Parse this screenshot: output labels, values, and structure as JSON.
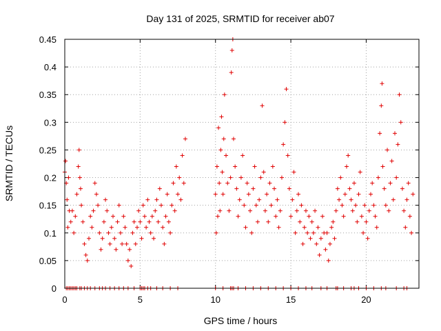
{
  "chart_data": {
    "type": "scatter",
    "title": "Day 131 of 2025, SRMTID for receiver ab07",
    "xlabel": "GPS time / hours",
    "ylabel": "SRMTID / TECUs",
    "xlim": [
      0,
      23.5
    ],
    "ylim": [
      0,
      0.45
    ],
    "xticks": [
      0,
      5,
      10,
      15,
      20
    ],
    "xtick_labels": [
      "0",
      "5",
      "10",
      "15",
      "20"
    ],
    "yticks": [
      0,
      0.05,
      0.1,
      0.15,
      0.2,
      0.25,
      0.3,
      0.35,
      0.4,
      0.45
    ],
    "ytick_labels": [
      "0",
      "0.05",
      "0.1",
      "0.15",
      "0.2",
      "0.25",
      "0.3",
      "0.35",
      "0.4",
      "0.45"
    ],
    "grid": true,
    "marker": "+",
    "color": "#e00000",
    "series": [
      {
        "name": "SRMTID",
        "x": [
          0.0,
          0.05,
          0.1,
          0.15,
          0.2,
          0.25,
          0.3,
          0.4,
          0.5,
          0.6,
          0.7,
          0.8,
          0.9,
          0.95,
          1.0,
          1.05,
          1.1,
          1.2,
          1.3,
          1.4,
          1.5,
          1.6,
          1.7,
          1.8,
          1.9,
          2.0,
          2.1,
          2.2,
          2.3,
          2.4,
          2.5,
          2.6,
          2.7,
          2.8,
          2.9,
          3.0,
          3.1,
          3.2,
          3.3,
          3.4,
          3.5,
          3.6,
          3.7,
          3.8,
          3.9,
          4.0,
          4.1,
          4.2,
          4.3,
          4.4,
          4.5,
          4.6,
          4.7,
          4.8,
          4.9,
          5.0,
          5.1,
          5.2,
          5.3,
          5.4,
          5.5,
          5.6,
          5.7,
          5.8,
          5.9,
          6.0,
          6.1,
          6.2,
          6.3,
          6.4,
          6.5,
          6.6,
          6.7,
          6.8,
          6.9,
          7.0,
          7.1,
          7.2,
          7.3,
          7.4,
          7.5,
          7.6,
          7.7,
          7.8,
          7.9,
          8.0,
          10.0,
          10.05,
          10.1,
          10.15,
          10.2,
          10.25,
          10.3,
          10.35,
          10.4,
          10.45,
          10.5,
          10.55,
          10.6,
          10.7,
          10.8,
          10.9,
          11.0,
          11.05,
          11.1,
          11.15,
          11.2,
          11.3,
          11.4,
          11.5,
          11.6,
          11.7,
          11.8,
          11.9,
          12.0,
          12.1,
          12.2,
          12.3,
          12.4,
          12.5,
          12.6,
          12.7,
          12.8,
          12.9,
          13.0,
          13.1,
          13.2,
          13.3,
          13.4,
          13.5,
          13.6,
          13.7,
          13.8,
          13.9,
          14.0,
          14.1,
          14.2,
          14.3,
          14.4,
          14.5,
          14.6,
          14.7,
          14.8,
          14.9,
          15.0,
          15.1,
          15.2,
          15.3,
          15.4,
          15.5,
          15.6,
          15.7,
          15.8,
          15.9,
          16.0,
          16.1,
          16.2,
          16.3,
          16.4,
          16.5,
          16.6,
          16.7,
          16.8,
          16.9,
          17.0,
          17.1,
          17.2,
          17.3,
          17.4,
          17.5,
          17.6,
          17.7,
          17.8,
          17.9,
          18.0,
          18.1,
          18.2,
          18.3,
          18.4,
          18.5,
          18.6,
          18.7,
          18.8,
          18.9,
          19.0,
          19.1,
          19.2,
          19.3,
          19.4,
          19.5,
          19.6,
          19.7,
          19.8,
          19.9,
          20.0,
          20.1,
          20.2,
          20.3,
          20.4,
          20.5,
          20.6,
          20.7,
          20.8,
          20.9,
          21.0,
          21.05,
          21.1,
          21.2,
          21.3,
          21.4,
          21.5,
          21.6,
          21.7,
          21.8,
          21.9,
          22.0,
          22.1,
          22.2,
          22.3,
          22.4,
          22.5,
          22.6,
          22.7,
          22.8,
          22.9,
          23.0,
          23.1
        ],
        "y": [
          0.21,
          0.23,
          0.19,
          0.16,
          0.11,
          0.2,
          0.14,
          0.12,
          0.14,
          0.1,
          0.13,
          0.17,
          0.22,
          0.25,
          0.2,
          0.18,
          0.15,
          0.12,
          0.08,
          0.06,
          0.05,
          0.09,
          0.13,
          0.11,
          0.14,
          0.19,
          0.17,
          0.15,
          0.1,
          0.07,
          0.09,
          0.12,
          0.16,
          0.14,
          0.1,
          0.08,
          0.11,
          0.13,
          0.09,
          0.07,
          0.12,
          0.15,
          0.1,
          0.08,
          0.13,
          0.11,
          0.08,
          0.05,
          0.07,
          0.04,
          0.1,
          0.12,
          0.08,
          0.11,
          0.14,
          0.12,
          0.09,
          0.15,
          0.13,
          0.11,
          0.16,
          0.12,
          0.1,
          0.13,
          0.09,
          0.14,
          0.16,
          0.12,
          0.18,
          0.15,
          0.11,
          0.08,
          0.13,
          0.17,
          0.12,
          0.1,
          0.15,
          0.19,
          0.14,
          0.22,
          0.17,
          0.2,
          0.16,
          0.24,
          0.19,
          0.27,
          0.17,
          0.1,
          0.22,
          0.13,
          0.29,
          0.19,
          0.14,
          0.25,
          0.31,
          0.21,
          0.17,
          0.27,
          0.35,
          0.24,
          0.19,
          0.14,
          0.2,
          0.39,
          0.43,
          0.45,
          0.27,
          0.22,
          0.18,
          0.13,
          0.16,
          0.2,
          0.24,
          0.15,
          0.11,
          0.19,
          0.17,
          0.14,
          0.1,
          0.18,
          0.22,
          0.15,
          0.12,
          0.16,
          0.2,
          0.33,
          0.21,
          0.14,
          0.17,
          0.12,
          0.19,
          0.15,
          0.22,
          0.18,
          0.13,
          0.16,
          0.11,
          0.14,
          0.2,
          0.26,
          0.3,
          0.36,
          0.24,
          0.18,
          0.13,
          0.16,
          0.21,
          0.1,
          0.14,
          0.17,
          0.12,
          0.15,
          0.08,
          0.11,
          0.14,
          0.1,
          0.13,
          0.09,
          0.12,
          0.1,
          0.14,
          0.08,
          0.11,
          0.06,
          0.09,
          0.13,
          0.1,
          0.07,
          0.1,
          0.05,
          0.08,
          0.11,
          0.12,
          0.09,
          0.14,
          0.18,
          0.16,
          0.2,
          0.15,
          0.13,
          0.17,
          0.22,
          0.24,
          0.18,
          0.16,
          0.14,
          0.19,
          0.15,
          0.12,
          0.17,
          0.21,
          0.13,
          0.1,
          0.15,
          0.12,
          0.09,
          0.14,
          0.17,
          0.19,
          0.15,
          0.13,
          0.11,
          0.2,
          0.28,
          0.33,
          0.37,
          0.22,
          0.18,
          0.15,
          0.25,
          0.14,
          0.19,
          0.23,
          0.16,
          0.28,
          0.2,
          0.26,
          0.35,
          0.3,
          0.18,
          0.14,
          0.11,
          0.16,
          0.19,
          0.13,
          0.1,
          0.17
        ]
      }
    ],
    "zero_markers_x": [
      0.1,
      0.2,
      0.3,
      0.4,
      0.5,
      0.6,
      0.7,
      0.8,
      1.0,
      1.1,
      1.3,
      1.5,
      1.7,
      2.0,
      2.3,
      2.5,
      2.7,
      3.0,
      3.3,
      3.6,
      3.9,
      4.2,
      4.6,
      5.0,
      5.1,
      5.2,
      5.3,
      5.5,
      5.7,
      6.1,
      6.5,
      7.0,
      7.5,
      10.0,
      10.5,
      11.0,
      11.1,
      11.2,
      11.5,
      12.0,
      12.5,
      13.0,
      13.5,
      14.0,
      14.5,
      15.0,
      15.5,
      16.0,
      16.4,
      17.0,
      17.4,
      18.0,
      18.1,
      18.5,
      19.0,
      19.2,
      19.5,
      20.0,
      20.5,
      21.0,
      21.3,
      22.0,
      22.5,
      22.7
    ]
  }
}
